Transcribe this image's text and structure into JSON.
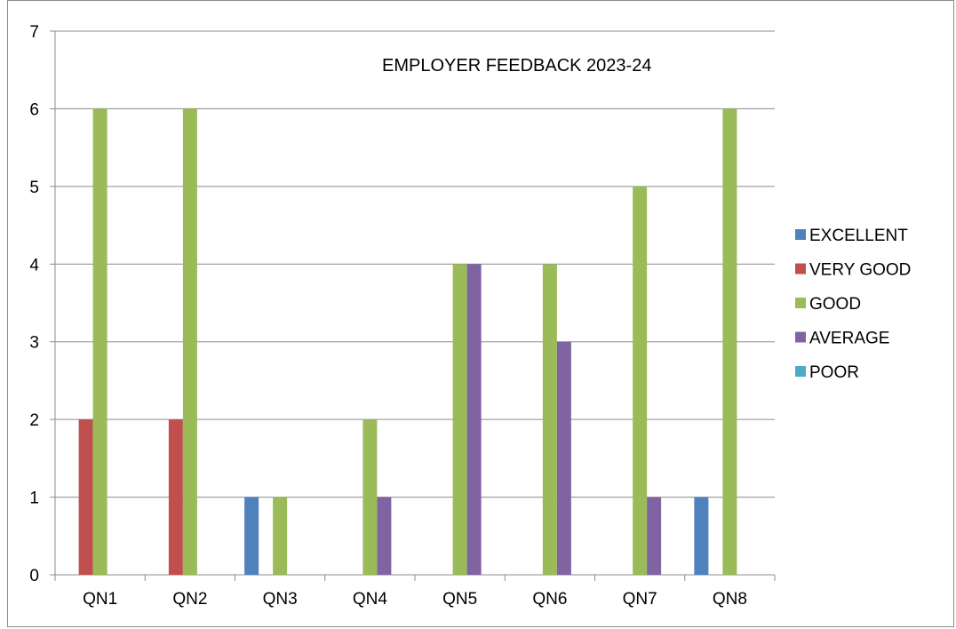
{
  "chart_data": {
    "type": "bar",
    "title": "EMPLOYER FEEDBACK 2023-24",
    "xlabel": "",
    "ylabel": "",
    "categories": [
      "QN1",
      "QN2",
      "QN3",
      "QN4",
      "QN5",
      "QN6",
      "QN7",
      "QN8"
    ],
    "ylim": [
      0,
      7
    ],
    "yticks": [
      "0",
      "1",
      "2",
      "3",
      "4",
      "5",
      "6",
      "7"
    ],
    "grid": true,
    "legend_position": "right",
    "series": [
      {
        "name": "EXCELLENT",
        "color": "#4f81bd",
        "values": [
          0,
          0,
          1,
          0,
          0,
          0,
          0,
          1
        ]
      },
      {
        "name": "VERY GOOD",
        "color": "#c0504d",
        "values": [
          2,
          2,
          0,
          0,
          0,
          0,
          0,
          0
        ]
      },
      {
        "name": "GOOD",
        "color": "#9bbb59",
        "values": [
          6,
          6,
          1,
          2,
          4,
          4,
          5,
          6
        ]
      },
      {
        "name": "AVERAGE",
        "color": "#8064a2",
        "values": [
          0,
          0,
          0,
          1,
          4,
          3,
          1,
          0
        ]
      },
      {
        "name": "POOR",
        "color": "#4bacc6",
        "values": [
          0,
          0,
          0,
          0,
          0,
          0,
          0,
          0
        ]
      }
    ]
  }
}
